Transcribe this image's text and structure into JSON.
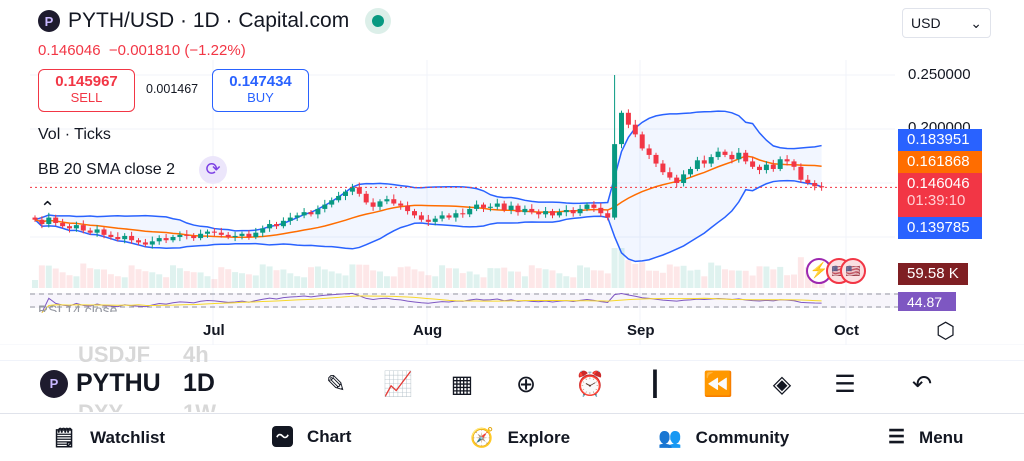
{
  "header": {
    "title": "PYTH/USD · 1D · Capital.com",
    "logo_letter": "P",
    "last": "0.146046",
    "change": "−0.001810 (−1.22%)"
  },
  "trade": {
    "sell_price": "0.145967",
    "sell_label": "SELL",
    "spread": "0.001467",
    "buy_price": "0.147434",
    "buy_label": "BUY"
  },
  "indicators": {
    "vol": "Vol · Ticks",
    "bb": "BB 20 SMA close 2",
    "rsi": "RSI 14 close"
  },
  "currency": "USD",
  "price_axis": [
    "0.250000",
    "0.200000"
  ],
  "tags": {
    "bb_upper": "0.183951",
    "bb_basis": "0.161868",
    "price": "0.146046",
    "countdown": "01:39:10",
    "bb_lower": "0.139785",
    "volume": "59.58 K",
    "rsi": "44.87"
  },
  "time_axis": [
    "Jul",
    "Aug",
    "Sep",
    "Oct"
  ],
  "toolbar": {
    "symbol": "PYTHU",
    "interval": "1D",
    "ghost_above": [
      "USDJF",
      "4h"
    ],
    "ghost_below": [
      "DXY",
      "1W"
    ]
  },
  "nav": [
    "Watchlist",
    "Chart",
    "Explore",
    "Community",
    "Menu"
  ],
  "colors": {
    "up": "#089981",
    "down": "#f23645",
    "bb": "#2962ff",
    "basis": "#ff6d00",
    "rsi": "#7e57c2"
  },
  "chart_data": {
    "type": "candlestick",
    "ylim": [
      0.08,
      0.26
    ],
    "close": [
      0.116,
      0.112,
      0.118,
      0.113,
      0.11,
      0.108,
      0.111,
      0.106,
      0.104,
      0.107,
      0.102,
      0.1,
      0.098,
      0.101,
      0.097,
      0.095,
      0.093,
      0.096,
      0.099,
      0.097,
      0.1,
      0.102,
      0.101,
      0.099,
      0.103,
      0.105,
      0.104,
      0.102,
      0.1,
      0.101,
      0.103,
      0.1,
      0.104,
      0.108,
      0.112,
      0.11,
      0.115,
      0.118,
      0.12,
      0.123,
      0.121,
      0.126,
      0.13,
      0.134,
      0.138,
      0.142,
      0.146,
      0.14,
      0.132,
      0.128,
      0.133,
      0.135,
      0.131,
      0.129,
      0.124,
      0.12,
      0.116,
      0.114,
      0.117,
      0.12,
      0.118,
      0.122,
      0.121,
      0.126,
      0.13,
      0.127,
      0.128,
      0.131,
      0.125,
      0.129,
      0.123,
      0.126,
      0.123,
      0.121,
      0.124,
      0.12,
      0.123,
      0.125,
      0.122,
      0.126,
      0.13,
      0.127,
      0.122,
      0.118,
      0.186,
      0.215,
      0.204,
      0.195,
      0.182,
      0.176,
      0.168,
      0.16,
      0.155,
      0.15,
      0.158,
      0.163,
      0.171,
      0.168,
      0.174,
      0.179,
      0.176,
      0.172,
      0.178,
      0.17,
      0.165,
      0.162,
      0.167,
      0.163,
      0.172,
      0.17,
      0.165,
      0.153,
      0.15,
      0.147,
      0.146
    ],
    "high_override": {
      "84": 0.25
    }
  }
}
